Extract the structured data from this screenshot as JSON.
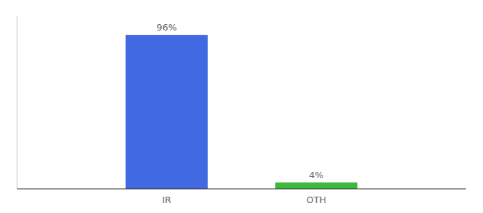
{
  "chart_data": {
    "type": "bar",
    "categories": [
      "IR",
      "OTH"
    ],
    "values": [
      96,
      4
    ],
    "value_labels": [
      "96%",
      "4%"
    ],
    "colors": [
      "#4169e1",
      "#3dba3d"
    ],
    "ylim": [
      0,
      108
    ],
    "data_labels": true,
    "tick_labels": "x"
  }
}
